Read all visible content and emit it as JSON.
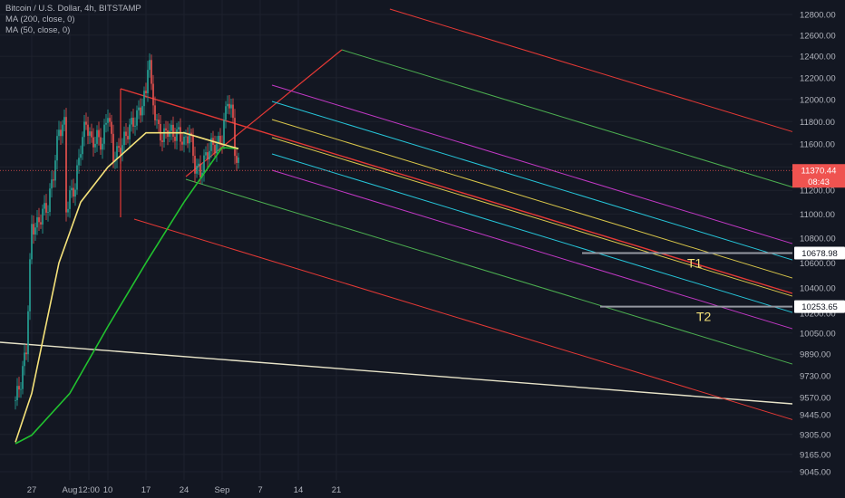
{
  "legend": {
    "symbol": "Bitcoin / U.S. Dollar, 4h, BITSTAMP",
    "ma200": "MA (200, close, 0)",
    "ma50": "MA (50, close, 0)"
  },
  "price_badge": {
    "price": "11370.44",
    "countdown": "08:43"
  },
  "targets": [
    {
      "label": "T1",
      "price": "10678.98"
    },
    {
      "label": "T2",
      "price": "10253.65"
    }
  ],
  "chart_data": {
    "type": "candlestick",
    "y_axis": {
      "scale": "log",
      "range": [
        8980,
        12900
      ],
      "ticks": [
        "12800.00",
        "12600.00",
        "12400.00",
        "12200.00",
        "12000.00",
        "11800.00",
        "11600.00",
        "11400.00",
        "11200.00",
        "11000.00",
        "10800.00",
        "10600.00",
        "10400.00",
        "10200.00",
        "10050.00",
        "9890.00",
        "9730.00",
        "9570.00",
        "9445.00",
        "9305.00",
        "9165.00",
        "9045.00"
      ]
    },
    "x_axis": {
      "ticks": [
        "27",
        "Aug",
        "12:00",
        "10",
        "17",
        "24",
        "Sep",
        "7",
        "14",
        "21"
      ]
    },
    "colors": {
      "up": "#26a69a",
      "down": "#ef5350",
      "ma200": "#21c12f",
      "ma50": "#f5e27a",
      "trend_white": "#e8e4c9",
      "fork_red": "#e53935",
      "fork_green": "#4caf50",
      "fork_cyan": "#26c6da",
      "fork_magenta": "#c238c5",
      "fork_yellow": "#d9c64a",
      "background": "#131722"
    },
    "price_path": [
      [
        "2020-07-24",
        9550
      ],
      [
        "2020-07-25",
        9650
      ],
      [
        "2020-07-26",
        9900
      ],
      [
        "2020-07-27",
        10900
      ],
      [
        "2020-07-28",
        10950
      ],
      [
        "2020-07-29",
        11050
      ],
      [
        "2020-07-30",
        11050
      ],
      [
        "2020-07-31",
        11300
      ],
      [
        "2020-08-01",
        11700
      ],
      [
        "2020-08-02",
        11800
      ],
      [
        "2020-08-02 04:00",
        11050
      ],
      [
        "2020-08-03",
        11200
      ],
      [
        "2020-08-04",
        11250
      ],
      [
        "2020-08-05",
        11550
      ],
      [
        "2020-08-06",
        11750
      ],
      [
        "2020-08-07",
        11600
      ],
      [
        "2020-08-08",
        11700
      ],
      [
        "2020-08-09",
        11650
      ],
      [
        "2020-08-10",
        11900
      ],
      [
        "2020-08-11",
        11450
      ],
      [
        "2020-08-12",
        11500
      ],
      [
        "2020-08-13",
        11650
      ],
      [
        "2020-08-14",
        11800
      ],
      [
        "2020-08-15",
        11850
      ],
      [
        "2020-08-16",
        11900
      ],
      [
        "2020-08-17",
        12000
      ],
      [
        "2020-08-17 12:00",
        12450
      ],
      [
        "2020-08-18",
        12050
      ],
      [
        "2020-08-19",
        11800
      ],
      [
        "2020-08-20",
        11700
      ],
      [
        "2020-08-21",
        11750
      ],
      [
        "2020-08-22",
        11650
      ],
      [
        "2020-08-23",
        11650
      ],
      [
        "2020-08-24",
        11600
      ],
      [
        "2020-08-25",
        11750
      ],
      [
        "2020-08-26",
        11450
      ],
      [
        "2020-08-27",
        11350
      ],
      [
        "2020-08-28",
        11450
      ],
      [
        "2020-08-29",
        11550
      ],
      [
        "2020-08-30",
        11600
      ],
      [
        "2020-08-31",
        11700
      ],
      [
        "2020-09-01",
        12050
      ],
      [
        "2020-09-02",
        11800
      ],
      [
        "2020-09-02 12:00",
        11400
      ],
      [
        "2020-09-03",
        11370
      ]
    ],
    "ma200": [
      [
        "2020-07-24",
        9240
      ],
      [
        "2020-07-27",
        9300
      ],
      [
        "2020-08-03",
        9600
      ],
      [
        "2020-08-10",
        10100
      ],
      [
        "2020-08-17",
        10600
      ],
      [
        "2020-08-24",
        11100
      ],
      [
        "2020-08-31",
        11570
      ],
      [
        "2020-09-03",
        11560
      ]
    ],
    "ma50": [
      [
        "2020-07-24",
        9250
      ],
      [
        "2020-07-27",
        9600
      ],
      [
        "2020-08-01",
        10600
      ],
      [
        "2020-08-05",
        11100
      ],
      [
        "2020-08-10",
        11400
      ],
      [
        "2020-08-17",
        11700
      ],
      [
        "2020-08-24",
        11700
      ],
      [
        "2020-08-31",
        11600
      ],
      [
        "2020-09-03",
        11560
      ]
    ]
  }
}
